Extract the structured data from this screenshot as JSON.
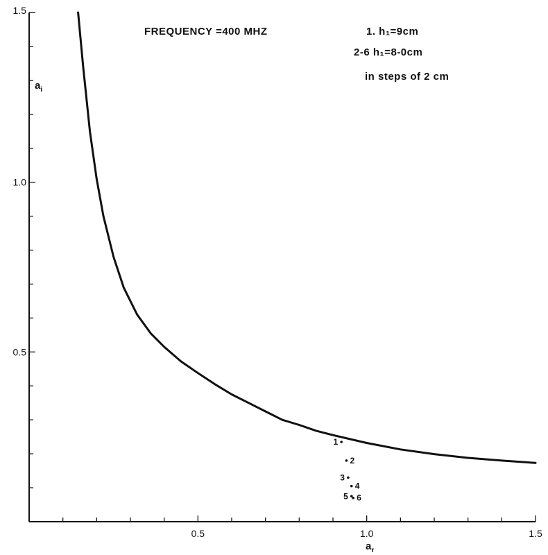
{
  "chart_data": {
    "type": "scatter",
    "xlabel": "a_r",
    "ylabel": "a_i",
    "xlim": [
      0,
      1.5
    ],
    "ylim": [
      0,
      1.5
    ],
    "x_ticks": [
      {
        "value": 0.5,
        "label": "0.5"
      },
      {
        "value": 1.0,
        "label": "1.0"
      },
      {
        "value": 1.5,
        "label": "1.5"
      }
    ],
    "y_ticks": [
      {
        "value": 0.5,
        "label": "0.5"
      },
      {
        "value": 1.0,
        "label": "1.0"
      },
      {
        "value": 1.5,
        "label": "1.5"
      }
    ],
    "minor_step": 0.1,
    "grid": false,
    "annotations": [
      "FREQUENCY =400 MHZ",
      "1.  h₁=9cm",
      "2-6  h₁=8-0cm",
      "in  steps  of  2 cm"
    ],
    "curve": {
      "x": [
        0.145,
        0.16,
        0.18,
        0.2,
        0.22,
        0.25,
        0.28,
        0.32,
        0.36,
        0.4,
        0.45,
        0.5,
        0.55,
        0.6,
        0.65,
        0.7,
        0.75,
        0.8,
        0.85,
        0.9,
        1.0,
        1.1,
        1.2,
        1.3,
        1.4,
        1.5
      ],
      "y": [
        1.5,
        1.34,
        1.15,
        1.01,
        0.9,
        0.78,
        0.69,
        0.61,
        0.555,
        0.515,
        0.472,
        0.438,
        0.405,
        0.375,
        0.35,
        0.325,
        0.3,
        0.285,
        0.268,
        0.255,
        0.232,
        0.213,
        0.199,
        0.188,
        0.18,
        0.173
      ]
    },
    "points": [
      {
        "label": "1",
        "x": 0.925,
        "y": 0.235,
        "label_side": "left"
      },
      {
        "label": "2",
        "x": 0.94,
        "y": 0.18,
        "label_side": "right"
      },
      {
        "label": "3",
        "x": 0.945,
        "y": 0.13,
        "label_side": "left"
      },
      {
        "label": "4",
        "x": 0.955,
        "y": 0.105,
        "label_side": "right"
      },
      {
        "label": "5",
        "x": 0.955,
        "y": 0.075,
        "label_side": "left"
      },
      {
        "label": "6",
        "x": 0.96,
        "y": 0.07,
        "label_side": "right"
      }
    ]
  }
}
